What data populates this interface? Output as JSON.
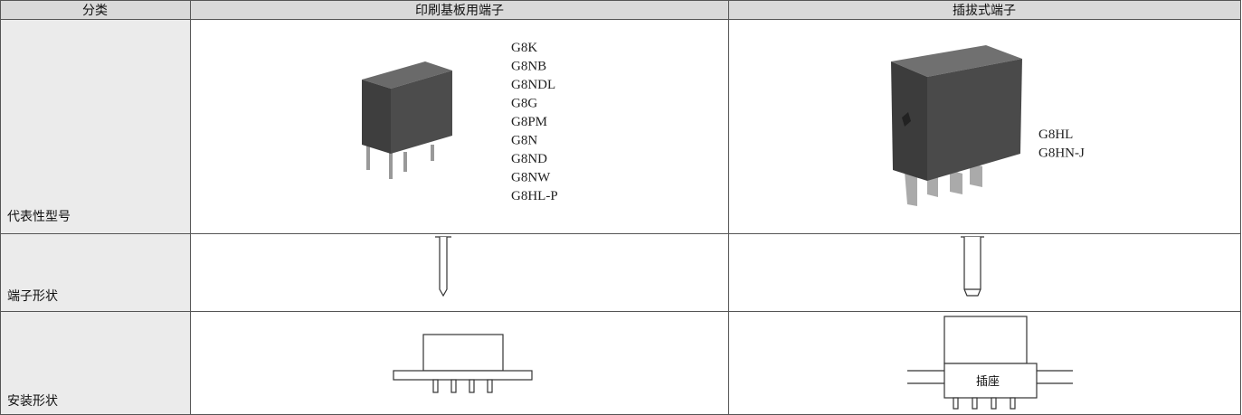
{
  "table": {
    "header": [
      "分类",
      "印刷基板用端子",
      "插拔式端子"
    ],
    "rows": [
      {
        "label": "代表性型号",
        "pcb_models": [
          "G8K",
          "G8NB",
          "G8NDL",
          "G8G",
          "G8PM",
          "G8N",
          "G8ND",
          "G8NW",
          "G8HL-P"
        ],
        "plugin_models": [
          "G8HL",
          "G8HN-J"
        ]
      },
      {
        "label": "端子形状"
      },
      {
        "label": "安装形状",
        "socket_label": "插座"
      }
    ]
  }
}
